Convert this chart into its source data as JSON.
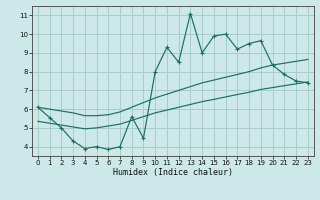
{
  "xlabel": "Humidex (Indice chaleur)",
  "bg_color": "#cce8e8",
  "grid_color": "#aacccc",
  "line_color": "#1a7060",
  "x_values": [
    0,
    1,
    2,
    3,
    4,
    5,
    6,
    7,
    8,
    9,
    10,
    11,
    12,
    13,
    14,
    15,
    16,
    17,
    18,
    19,
    20,
    21,
    22,
    23
  ],
  "y_main": [
    6.1,
    5.55,
    5.0,
    4.3,
    3.9,
    4.0,
    3.85,
    4.0,
    5.6,
    4.45,
    8.0,
    9.3,
    8.5,
    11.1,
    9.0,
    9.9,
    10.0,
    9.2,
    9.5,
    9.65,
    8.35,
    7.85,
    7.5,
    7.4
  ],
  "y_upper_trend": [
    6.1,
    6.0,
    5.9,
    5.8,
    5.65,
    5.65,
    5.7,
    5.85,
    6.1,
    6.35,
    6.6,
    6.8,
    7.0,
    7.2,
    7.4,
    7.55,
    7.7,
    7.85,
    8.0,
    8.2,
    8.35,
    8.45,
    8.55,
    8.65
  ],
  "y_lower_trend": [
    5.35,
    5.25,
    5.15,
    5.05,
    4.95,
    5.0,
    5.1,
    5.2,
    5.4,
    5.6,
    5.8,
    5.95,
    6.1,
    6.25,
    6.4,
    6.52,
    6.65,
    6.78,
    6.9,
    7.05,
    7.15,
    7.25,
    7.35,
    7.45
  ],
  "ylim": [
    3.5,
    11.5
  ],
  "xlim": [
    -0.5,
    23.5
  ],
  "yticks": [
    4,
    5,
    6,
    7,
    8,
    9,
    10,
    11
  ],
  "xticks": [
    0,
    1,
    2,
    3,
    4,
    5,
    6,
    7,
    8,
    9,
    10,
    11,
    12,
    13,
    14,
    15,
    16,
    17,
    18,
    19,
    20,
    21,
    22,
    23
  ]
}
